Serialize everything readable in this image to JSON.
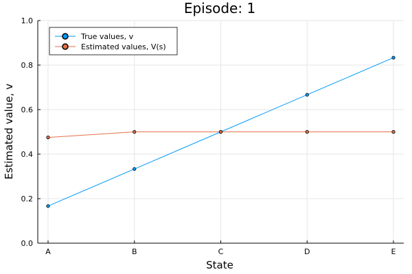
{
  "chart_data": {
    "type": "line",
    "title": "Episode: 1",
    "xlabel": "State",
    "ylabel": "Estimated value, v",
    "categories": [
      "A",
      "B",
      "C",
      "D",
      "E"
    ],
    "ylim": [
      0.0,
      1.0
    ],
    "yticks": [
      "0.0",
      "0.2",
      "0.4",
      "0.6",
      "0.8",
      "1.0"
    ],
    "grid": true,
    "legend_position": "top-left",
    "series": [
      {
        "name": "True values, v",
        "color": "#009AFA",
        "values": [
          0.1667,
          0.3333,
          0.5,
          0.6667,
          0.8333
        ]
      },
      {
        "name": "Estimated values, V(s)",
        "color": "#E36F47",
        "values": [
          0.475,
          0.5,
          0.5,
          0.5,
          0.5
        ]
      }
    ]
  }
}
